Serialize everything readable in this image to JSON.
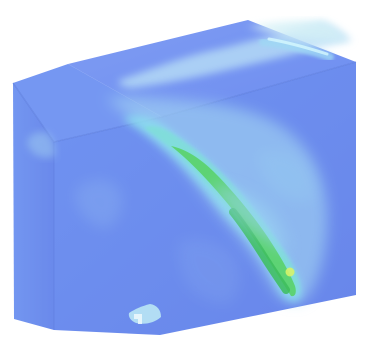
{
  "viewport": {
    "background": "#ffffff"
  },
  "contour_colors": {
    "base": "#6f8ff0",
    "base_shadow": "#6683e6",
    "light_blue": "#a7d4f3",
    "pale_blue": "#c7e7f6",
    "cyan": "#8ce6ee",
    "aqua": "#7edfd5",
    "green": "#5bd26f",
    "deep_green": "#38c65a",
    "yellow_green": "#b5f06c",
    "dark_edge": "#5a79d9"
  },
  "icons": {
    "model": "3d-solid-block-icon"
  }
}
